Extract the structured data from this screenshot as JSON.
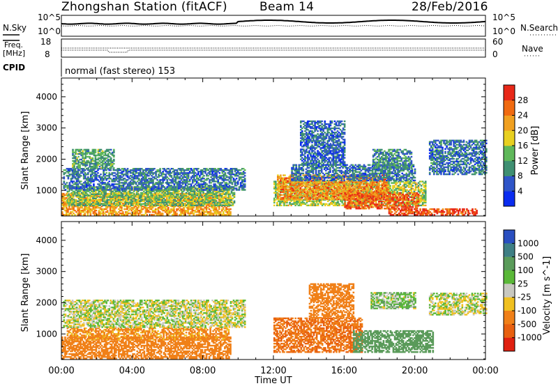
{
  "header": {
    "station": "Zhongshan Station (fitACF)",
    "beam": "Beam 14",
    "date": "28/Feb/2016"
  },
  "noise_panel": {
    "left_label": "N.Sky",
    "right_label": "N.Search",
    "top_tick": "10^5",
    "bottom_tick": "10^0"
  },
  "freq_panel": {
    "left_label_line1": "Freq.",
    "left_label_line2": "[MHz]",
    "left_ticks": [
      "18",
      "8"
    ],
    "right_label": "Nave",
    "right_ticks": [
      "60",
      "0"
    ]
  },
  "cpid_panel": {
    "label": "CPID",
    "text": "normal (fast stereo) 153"
  },
  "chart_data": [
    {
      "type": "heatmap",
      "title": "",
      "xlabel": "Time UT",
      "ylabel": "Slant Range [km]",
      "xlim": [
        0,
        24
      ],
      "ylim": [
        180,
        4600
      ],
      "x_ticks": [
        "00:00",
        "04:00",
        "08:00",
        "12:00",
        "16:00",
        "20:00",
        "00:00"
      ],
      "y_ticks": [
        1000,
        2000,
        3000,
        4000
      ],
      "colorbar_label": "Power [dB]",
      "colorbar_ticks": [
        4,
        8,
        12,
        16,
        20,
        24,
        28
      ],
      "colorbar_range": [
        0,
        32
      ],
      "colors": [
        "#0a2cf0",
        "#2f55c8",
        "#3f8f72",
        "#5fb85a",
        "#e8d020",
        "#f0a020",
        "#f06a10",
        "#e82818"
      ],
      "regions": [
        {
          "t0": 0.0,
          "t1": 9.6,
          "r0": 200,
          "r1": 900,
          "value": 22
        },
        {
          "t0": 0.3,
          "t1": 9.8,
          "r0": 500,
          "r1": 1100,
          "value": 14
        },
        {
          "t0": 0.1,
          "t1": 10.4,
          "r0": 1000,
          "r1": 1700,
          "value": 8
        },
        {
          "t0": 0.6,
          "t1": 3.0,
          "r0": 1700,
          "r1": 2300,
          "value": 12
        },
        {
          "t0": 12.0,
          "t1": 20.6,
          "r0": 500,
          "r1": 1300,
          "value": 16
        },
        {
          "t0": 12.2,
          "t1": 18.5,
          "r0": 700,
          "r1": 1500,
          "value": 24
        },
        {
          "t0": 16.0,
          "t1": 20.2,
          "r0": 400,
          "r1": 900,
          "value": 27
        },
        {
          "t0": 13.0,
          "t1": 20.0,
          "r0": 1300,
          "r1": 1800,
          "value": 8
        },
        {
          "t0": 17.6,
          "t1": 19.8,
          "r0": 1700,
          "r1": 2300,
          "value": 10
        },
        {
          "t0": 13.5,
          "t1": 16.0,
          "r0": 1800,
          "r1": 3200,
          "value": 7
        },
        {
          "t0": 20.8,
          "t1": 24.0,
          "r0": 1500,
          "r1": 2600,
          "value": 8
        },
        {
          "t0": 18.5,
          "t1": 23.5,
          "r0": 200,
          "r1": 400,
          "value": 28
        }
      ]
    },
    {
      "type": "heatmap",
      "title": "",
      "xlabel": "Time UT",
      "ylabel": "Slant Range [km]",
      "xlim": [
        0,
        24
      ],
      "ylim": [
        180,
        4600
      ],
      "x_ticks": [
        "00:00",
        "04:00",
        "08:00",
        "12:00",
        "16:00",
        "20:00",
        "00:00"
      ],
      "y_ticks": [
        1000,
        2000,
        3000,
        4000
      ],
      "colorbar_label": "Velocity [m s^-1]",
      "colorbar_ticks": [
        "1000",
        "500",
        "100",
        "25",
        "-25",
        "-100",
        "-500",
        "-1000"
      ],
      "colors": [
        "#2a4fc0",
        "#3f7f84",
        "#5a9b5a",
        "#5ab838",
        "#c8c8c0",
        "#f0c020",
        "#f08018",
        "#e86010",
        "#e02010"
      ],
      "regions": [
        {
          "t0": 0.0,
          "t1": 9.6,
          "r0": 200,
          "r1": 900,
          "value": -300
        },
        {
          "t0": 0.3,
          "t1": 9.5,
          "r0": 800,
          "r1": 1200,
          "value": -150
        },
        {
          "t0": 0.1,
          "t1": 10.4,
          "r0": 1200,
          "r1": 2100,
          "value": 0
        },
        {
          "t0": 12.0,
          "t1": 17.0,
          "r0": 400,
          "r1": 1500,
          "value": -500
        },
        {
          "t0": 16.5,
          "t1": 21.0,
          "r0": 400,
          "r1": 1100,
          "value": 300
        },
        {
          "t0": 14.0,
          "t1": 16.5,
          "r0": 1500,
          "r1": 2600,
          "value": -200
        },
        {
          "t0": 20.8,
          "t1": 24.0,
          "r0": 1600,
          "r1": 2300,
          "value": 0
        },
        {
          "t0": 17.5,
          "t1": 20.0,
          "r0": 1800,
          "r1": 2300,
          "value": 50
        }
      ]
    }
  ]
}
